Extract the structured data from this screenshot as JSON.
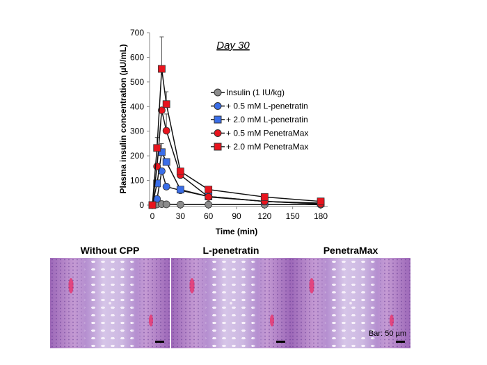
{
  "chart_data": {
    "type": "line",
    "title": "Day 30",
    "xlabel": "Time (min)",
    "ylabel": "Plasma insulin concentration (µU/mL)",
    "xlim": [
      0,
      180
    ],
    "ylim": [
      0,
      700
    ],
    "xticks": [
      0,
      30,
      60,
      90,
      120,
      150,
      180
    ],
    "yticks": [
      0,
      100,
      200,
      300,
      400,
      500,
      600,
      700
    ],
    "x": [
      0,
      5,
      10,
      15,
      30,
      60,
      120,
      180
    ],
    "legend_position": "right",
    "series": [
      {
        "name": "Insulin (1 IU/kg)",
        "color": "#8c8c8c",
        "marker": "circle",
        "values": [
          0,
          3,
          4,
          3,
          2,
          2,
          2,
          2
        ],
        "err": [
          0,
          0,
          0,
          0,
          0,
          0,
          0,
          0
        ]
      },
      {
        "name": "+ 0.5 mM L-penetratin",
        "color": "#3a6ee8",
        "marker": "circle",
        "values": [
          0,
          25,
          138,
          75,
          60,
          35,
          15,
          5
        ],
        "err": [
          0,
          0,
          0,
          0,
          0,
          0,
          0,
          0
        ]
      },
      {
        "name": "+ 2.0 mM L-penetratin",
        "color": "#3a6ee8",
        "marker": "square",
        "values": [
          0,
          88,
          215,
          175,
          63,
          35,
          15,
          8
        ],
        "err": [
          0,
          0,
          35,
          0,
          0,
          0,
          0,
          0
        ]
      },
      {
        "name": "+ 0.5 mM PenetraMax",
        "color": "#e8141e",
        "marker": "circle",
        "values": [
          0,
          157,
          385,
          302,
          122,
          33,
          15,
          5
        ],
        "err": [
          0,
          0,
          0,
          68,
          0,
          0,
          0,
          0
        ]
      },
      {
        "name": "+ 2.0 mM PenetraMax",
        "color": "#e8141e",
        "marker": "square",
        "values": [
          0,
          232,
          553,
          410,
          137,
          63,
          33,
          15
        ],
        "err": [
          0,
          43,
          130,
          50,
          0,
          0,
          0,
          0
        ]
      }
    ]
  },
  "histology": {
    "panels": [
      {
        "title": "Without CPP"
      },
      {
        "title": "L-penetratin"
      },
      {
        "title": "PenetraMax"
      }
    ],
    "scale_label": "Bar: 50 µm"
  }
}
